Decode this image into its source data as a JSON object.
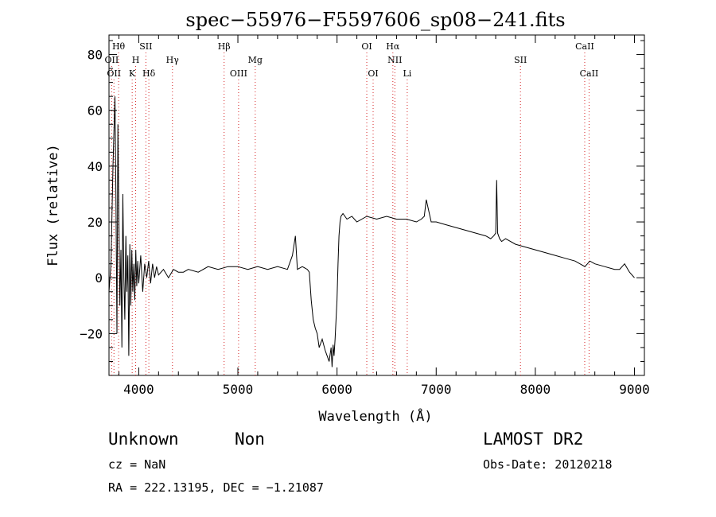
{
  "chart_data": {
    "type": "line",
    "title": "spec−55976−F5597606_sp08−241.fits",
    "xlabel": "Wavelength (Å)",
    "ylabel": "Flux (relative)",
    "xlim": [
      3700,
      9100
    ],
    "ylim": [
      -35,
      87
    ],
    "x_ticks": [
      4000,
      5000,
      6000,
      7000,
      8000,
      9000
    ],
    "y_ticks": [
      -20,
      0,
      20,
      40,
      60,
      80
    ],
    "x_tick_labels": [
      "4000",
      "5000",
      "6000",
      "7000",
      "8000",
      "9000"
    ],
    "y_tick_labels": [
      "−20",
      "0",
      "20",
      "40",
      "60",
      "80"
    ],
    "grid": false,
    "series": [
      {
        "x": [
          3700,
          3720,
          3740,
          3760,
          3770,
          3780,
          3790,
          3800,
          3810,
          3820,
          3830,
          3840,
          3850,
          3860,
          3870,
          3880,
          3890,
          3900,
          3910,
          3920,
          3930,
          3940,
          3950,
          3960,
          3970,
          3980,
          3990,
          4000,
          4020,
          4040,
          4060,
          4080,
          4100,
          4120,
          4140,
          4160,
          4180,
          4200,
          4250,
          4300,
          4350,
          4400,
          4450,
          4500,
          4600,
          4700,
          4800,
          4900,
          5000,
          5100,
          5200,
          5300,
          5400,
          5500,
          5550,
          5580,
          5600,
          5650,
          5700,
          5720,
          5740,
          5760,
          5780,
          5800,
          5820,
          5850,
          5880,
          5900,
          5920,
          5940,
          5950,
          5960,
          5970,
          5980,
          5990,
          6000,
          6010,
          6020,
          6030,
          6040,
          6060,
          6080,
          6100,
          6150,
          6200,
          6300,
          6400,
          6500,
          6600,
          6700,
          6800,
          6850,
          6880,
          6900,
          6950,
          7000,
          7100,
          7200,
          7300,
          7400,
          7500,
          7550,
          7580,
          7600,
          7610,
          7620,
          7640,
          7660,
          7700,
          7800,
          7900,
          8000,
          8100,
          8200,
          8300,
          8400,
          8450,
          8500,
          8550,
          8600,
          8700,
          8800,
          8850,
          8900,
          8950,
          9000
        ],
        "y": [
          -5,
          5,
          40,
          65,
          30,
          -20,
          55,
          20,
          -10,
          10,
          -25,
          30,
          0,
          -15,
          15,
          -5,
          8,
          -28,
          12,
          -10,
          10,
          -5,
          5,
          -8,
          10,
          -3,
          6,
          -2,
          8,
          -5,
          5,
          0,
          6,
          -2,
          5,
          0,
          4,
          1,
          3,
          0,
          3,
          2,
          2,
          3,
          2,
          4,
          3,
          4,
          4,
          3,
          4,
          3,
          4,
          3,
          8,
          15,
          3,
          4,
          3,
          2,
          -8,
          -15,
          -18,
          -20,
          -25,
          -22,
          -26,
          -28,
          -30,
          -25,
          -32,
          -24,
          -28,
          -22,
          -15,
          -8,
          5,
          15,
          20,
          22,
          23,
          22,
          21,
          22,
          20,
          22,
          21,
          22,
          21,
          21,
          20,
          21,
          22,
          28,
          20,
          20,
          19,
          18,
          17,
          16,
          15,
          14,
          15,
          16,
          35,
          16,
          14,
          13,
          14,
          12,
          11,
          10,
          9,
          8,
          7,
          6,
          5,
          4,
          6,
          5,
          4,
          3,
          3,
          5,
          2,
          0
        ]
      }
    ],
    "lines": [
      {
        "x": 3727,
        "label": "OII",
        "row": 2
      },
      {
        "x": 3750,
        "label": "OII",
        "row": 3
      },
      {
        "x": 3797,
        "label": "Hθ",
        "row": 1
      },
      {
        "x": 3934,
        "label": "K",
        "row": 3
      },
      {
        "x": 3969,
        "label": "H",
        "row": 2
      },
      {
        "x": 4072,
        "label": "SII",
        "row": 1
      },
      {
        "x": 4102,
        "label": "Hδ",
        "row": 3
      },
      {
        "x": 4340,
        "label": "Hγ",
        "row": 2
      },
      {
        "x": 4861,
        "label": "Hβ",
        "row": 1
      },
      {
        "x": 5007,
        "label": "OIII",
        "row": 3
      },
      {
        "x": 5175,
        "label": "Mg",
        "row": 2
      },
      {
        "x": 6300,
        "label": "OI",
        "row": 1
      },
      {
        "x": 6364,
        "label": "OI",
        "row": 3
      },
      {
        "x": 6563,
        "label": "Hα",
        "row": 1
      },
      {
        "x": 6583,
        "label": "NII",
        "row": 2
      },
      {
        "x": 6708,
        "label": "Li",
        "row": 3
      },
      {
        "x": 7850,
        "label": "SII",
        "row": 2
      },
      {
        "x": 8498,
        "label": "CaII",
        "row": 1
      },
      {
        "x": 8542,
        "label": "CaII",
        "row": 3
      }
    ]
  },
  "info": {
    "class": "Unknown",
    "subclass": "Non",
    "survey": "LAMOST DR2",
    "cz": "cz = NaN",
    "obs_date": "Obs-Date: 20120218",
    "coords": "RA = 222.13195, DEC =  −1.21087"
  }
}
